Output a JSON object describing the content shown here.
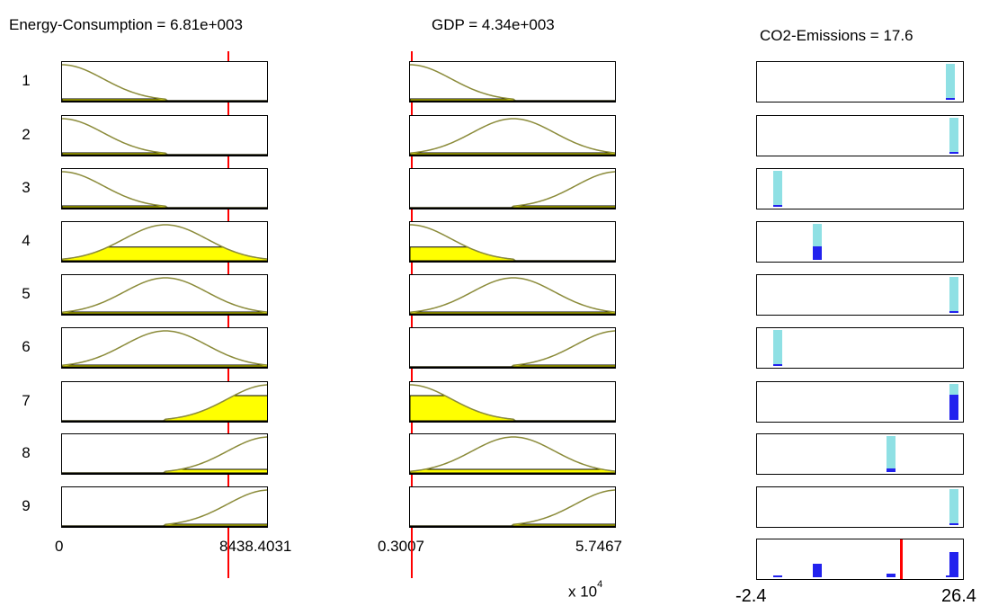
{
  "headers": {
    "energy": "Energy-Consumption = 6.81e+003",
    "gdp": "GDP = 4.34e+003",
    "co2": "CO2-Emissions = 17.6"
  },
  "inputs": {
    "energy": {
      "value": 6810,
      "range": [
        0,
        8438.4031
      ]
    },
    "gdp": {
      "value": 4340,
      "range": [
        3007,
        57467
      ],
      "display_scale": "x 10^4"
    }
  },
  "output": {
    "name": "CO2-Emissions",
    "value": 17.6,
    "range": [
      -2.4,
      26.4
    ]
  },
  "axis_labels": {
    "energy_min": "0",
    "energy_max": "8438.4031",
    "gdp_min": "0.3007",
    "gdp_max": "5.7467",
    "gdp_exponent": "x 10",
    "gdp_exponent_power": "4",
    "co2_min": "-2.4",
    "co2_max": "26.4"
  },
  "rules": [
    {
      "num": "1",
      "energy_mf": "low",
      "gdp_mf": "low",
      "co2": 24.4,
      "strength": 0.05
    },
    {
      "num": "2",
      "energy_mf": "low",
      "gdp_mf": "medium",
      "co2": 24.9,
      "strength": 0.05
    },
    {
      "num": "3",
      "energy_mf": "low",
      "gdp_mf": "high",
      "co2": 0.5,
      "strength": 0.05
    },
    {
      "num": "4",
      "energy_mf": "medium",
      "gdp_mf": "low",
      "co2": 5.9,
      "strength": 0.38
    },
    {
      "num": "5",
      "energy_mf": "medium",
      "gdp_mf": "medium",
      "co2": 24.9,
      "strength": 0.05
    },
    {
      "num": "6",
      "energy_mf": "medium",
      "gdp_mf": "high",
      "co2": 0.5,
      "strength": 0.05
    },
    {
      "num": "7",
      "energy_mf": "high",
      "gdp_mf": "low",
      "co2": 24.9,
      "strength": 0.7
    },
    {
      "num": "8",
      "energy_mf": "high",
      "gdp_mf": "medium",
      "co2": 16.2,
      "strength": 0.1
    },
    {
      "num": "9",
      "energy_mf": "high",
      "gdp_mf": "high",
      "co2": 24.9,
      "strength": 0.05
    }
  ],
  "colors": {
    "fill": "#ffff00",
    "curve": "#8b8b3a",
    "marker": "#ff0000",
    "singleton_light": "#8fe0e4",
    "singleton_dark": "#2222ee"
  }
}
